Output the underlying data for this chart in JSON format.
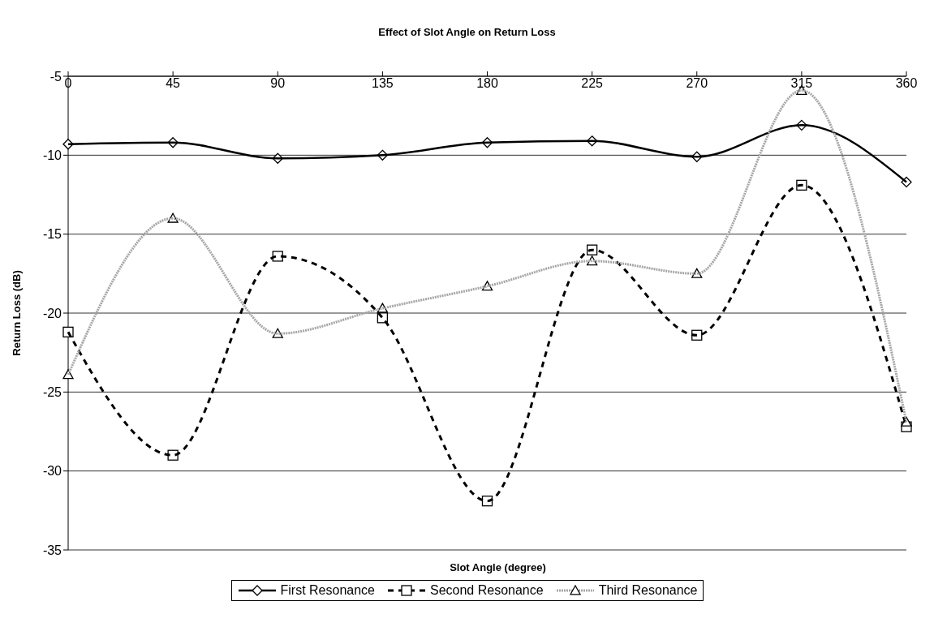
{
  "chart_data": {
    "type": "line",
    "title": "Effect of Slot Angle on Return Loss",
    "xlabel": "Slot Angle (degree)",
    "ylabel": "Return Loss (dB)",
    "x": [
      0,
      45,
      90,
      135,
      180,
      225,
      270,
      315,
      360
    ],
    "series": [
      {
        "name": "First Resonance",
        "color": "#000000",
        "marker": "diamond",
        "line_style": "solid",
        "values": [
          -9.3,
          -9.2,
          -10.2,
          -10.0,
          -9.2,
          -9.1,
          -10.1,
          -8.1,
          -11.7
        ]
      },
      {
        "name": "Second Resonance",
        "color": "#000000",
        "marker": "square",
        "line_style": "dashed",
        "values": [
          -21.2,
          -29.0,
          -16.4,
          -20.3,
          -31.9,
          -16.0,
          -21.4,
          -11.9,
          -27.2
        ]
      },
      {
        "name": "Third Resonance",
        "color": "#a6a6a6",
        "marker": "triangle",
        "line_style": "dotted",
        "values": [
          -23.9,
          -14.0,
          -21.3,
          -19.7,
          -18.3,
          -16.7,
          -17.5,
          -5.9,
          -26.9
        ]
      }
    ],
    "xlim": [
      0,
      360
    ],
    "xticks": [
      0,
      45,
      90,
      135,
      180,
      225,
      270,
      315,
      360
    ],
    "ylim": [
      -35,
      -5
    ],
    "yticks": [
      -35,
      -30,
      -25,
      -20,
      -15,
      -10,
      -5
    ],
    "grid": "y",
    "legend": "bottom"
  }
}
